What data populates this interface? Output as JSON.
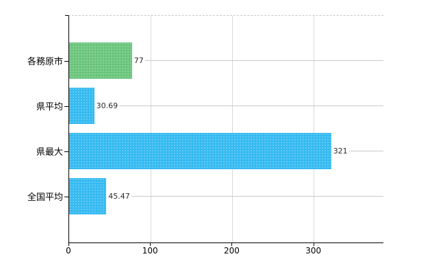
{
  "chart_data": {
    "type": "bar",
    "orientation": "horizontal",
    "title": "",
    "categories": [
      "各務原市",
      "県平均",
      "県最大",
      "全国平均"
    ],
    "values": [
      77,
      30.69,
      321,
      45.47
    ],
    "value_labels": [
      "77",
      "30.69",
      "321",
      "45.47"
    ],
    "bar_colors": [
      "#6ac57b",
      "#35baf1",
      "#35baf1",
      "#35baf1"
    ],
    "xlabel": "",
    "ylabel": "",
    "xlim": [
      0,
      385
    ],
    "x_ticks": [
      0,
      100,
      200,
      300
    ],
    "x_tick_labels": [
      "0",
      "100",
      "200",
      "300"
    ],
    "grid": "vertical-gridlines-at-ticks",
    "legend": "none"
  },
  "colors": {
    "green_bar": "#6ac57b",
    "blue_bar": "#35baf1",
    "axis": "#000000",
    "gridline": "#d9d9d9",
    "leader_line": "#c9c9c9",
    "background": "#ffffff"
  }
}
